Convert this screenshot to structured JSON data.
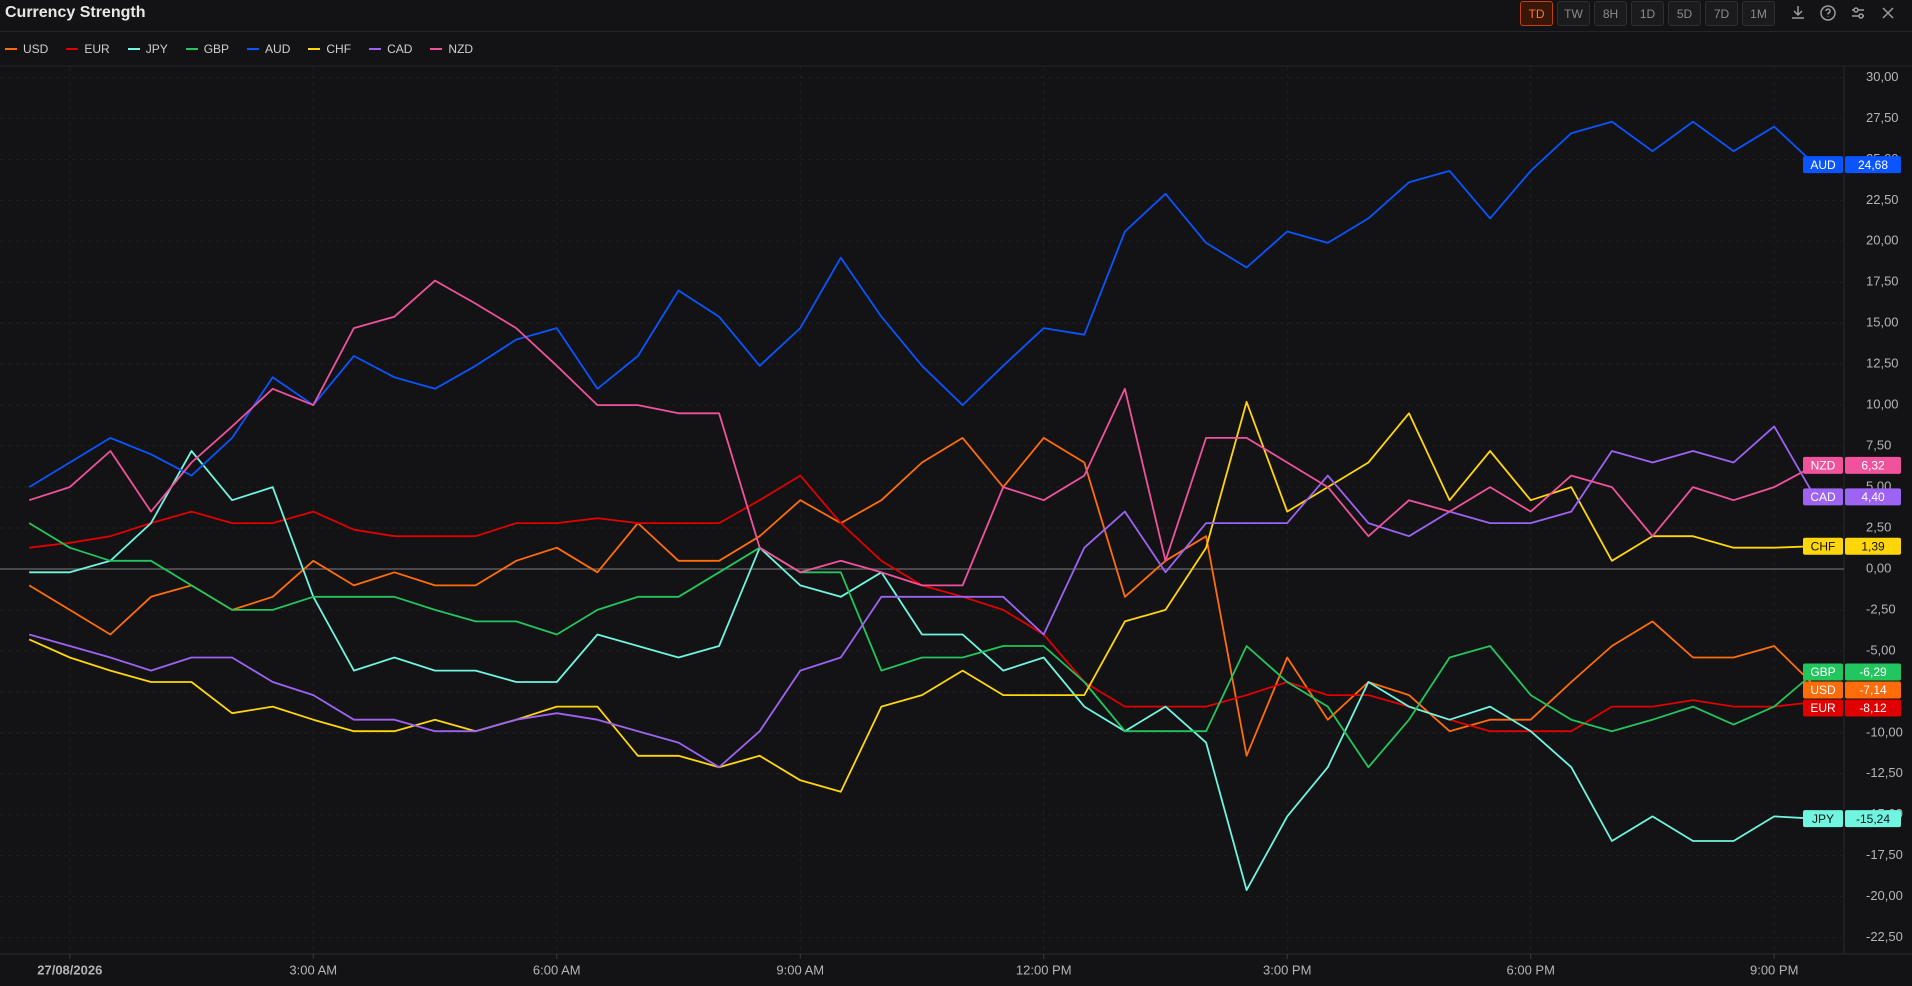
{
  "chart_data": {
    "type": "line",
    "title": "Currency Strength",
    "toolbar": {
      "ranges": [
        "TD",
        "TW",
        "8H",
        "1D",
        "5D",
        "7D",
        "1M"
      ],
      "active": "TD"
    },
    "x": [
      -0.5,
      0,
      0.5,
      1,
      1.5,
      2,
      2.5,
      3,
      3.5,
      4,
      4.5,
      5,
      5.5,
      6,
      6.5,
      7,
      7.5,
      8,
      8.5,
      9,
      9.5,
      10,
      10.5,
      11,
      11.5,
      12,
      12.5,
      13,
      13.5,
      14,
      14.5,
      15,
      15.5,
      16,
      16.5,
      17,
      17.5,
      18,
      18.5,
      19,
      19.5,
      20,
      20.5,
      21,
      21.5
    ],
    "xlim": [
      -0.86,
      21.86
    ],
    "xticks": [
      {
        "value": 0,
        "label": "27/08/2026"
      },
      {
        "value": 3,
        "label": "3:00 AM"
      },
      {
        "value": 6,
        "label": "6:00 AM"
      },
      {
        "value": 9,
        "label": "9:00 AM"
      },
      {
        "value": 12,
        "label": "12:00 PM"
      },
      {
        "value": 15,
        "label": "3:00 PM"
      },
      {
        "value": 18,
        "label": "6:00 PM"
      },
      {
        "value": 21,
        "label": "9:00 PM"
      }
    ],
    "ylim": [
      -23.5,
      30.7
    ],
    "yticks": [
      {
        "value": -22.5,
        "label": "-22,50"
      },
      {
        "value": -20,
        "label": "-20,00"
      },
      {
        "value": -17.5,
        "label": "-17,50"
      },
      {
        "value": -15,
        "label": "-15,00"
      },
      {
        "value": -12.5,
        "label": "-12,50"
      },
      {
        "value": -10,
        "label": "-10,00"
      },
      {
        "value": -7.5,
        "label": "-7,50"
      },
      {
        "value": -5,
        "label": "-5,00"
      },
      {
        "value": -2.5,
        "label": "-2,50"
      },
      {
        "value": 0,
        "label": "0,00"
      },
      {
        "value": 2.5,
        "label": "2,50"
      },
      {
        "value": 5,
        "label": "5,00"
      },
      {
        "value": 7.5,
        "label": "7,50"
      },
      {
        "value": 10,
        "label": "10,00"
      },
      {
        "value": 12.5,
        "label": "12,50"
      },
      {
        "value": 15,
        "label": "15,00"
      },
      {
        "value": 17.5,
        "label": "17,50"
      },
      {
        "value": 20,
        "label": "20,00"
      },
      {
        "value": 22.5,
        "label": "22,50"
      },
      {
        "value": 25,
        "label": "25,00"
      },
      {
        "value": 27.5,
        "label": "27,50"
      },
      {
        "value": 30,
        "label": "30,00"
      }
    ],
    "grid": true,
    "series": [
      {
        "name": "USD",
        "color": "#ff6d0a",
        "last_label": "-7,14",
        "values": [
          -1,
          -2.5,
          -4,
          -1.7,
          -1,
          -2.5,
          -1.7,
          0.5,
          -1,
          -0.2,
          -1,
          -1,
          0.5,
          1.3,
          -0.2,
          2.8,
          0.5,
          0.5,
          2,
          4.2,
          2.8,
          4.2,
          6.5,
          8,
          5,
          8,
          6.5,
          -1.7,
          0.5,
          2,
          -11.4,
          -5.4,
          -9.2,
          -6.9,
          -7.7,
          -9.9,
          -9.2,
          -9.2,
          -6.9,
          -4.7,
          -3.2,
          -5.4,
          -5.4,
          -4.7,
          -7.14
        ]
      },
      {
        "name": "EUR",
        "color": "#e00000",
        "last_label": "-8,12",
        "values": [
          1.3,
          1.6,
          2,
          2.8,
          3.5,
          2.8,
          2.8,
          3.5,
          2.4,
          2,
          2,
          2,
          2.8,
          2.8,
          3.1,
          2.8,
          2.8,
          2.8,
          4.2,
          5.7,
          2.8,
          0.5,
          -1,
          -1.7,
          -2.5,
          -4,
          -6.9,
          -8.4,
          -8.4,
          -8.4,
          -7.7,
          -6.9,
          -7.7,
          -7.7,
          -8.4,
          -9.2,
          -9.9,
          -9.9,
          -9.9,
          -8.4,
          -8.4,
          -8,
          -8.4,
          -8.4,
          -8.12
        ]
      },
      {
        "name": "JPY",
        "color": "#6ff5e0",
        "last_label": "-15,24",
        "values": [
          -0.2,
          -0.2,
          0.5,
          2.8,
          7.2,
          4.2,
          5,
          -1.7,
          -6.2,
          -5.4,
          -6.2,
          -6.2,
          -6.9,
          -6.9,
          -4,
          -4.7,
          -5.4,
          -4.7,
          1.3,
          -1,
          -1.7,
          -0.2,
          -4,
          -4,
          -6.2,
          -5.4,
          -8.4,
          -9.9,
          -8.4,
          -10.6,
          -19.6,
          -15.1,
          -12.1,
          -6.9,
          -8.4,
          -9.2,
          -8.4,
          -9.9,
          -12.1,
          -16.6,
          -15.1,
          -16.6,
          -16.6,
          -15.1,
          -15.24
        ]
      },
      {
        "name": "GBP",
        "color": "#22c55e",
        "last_label": "-6,29",
        "values": [
          2.8,
          1.3,
          0.5,
          0.5,
          -1,
          -2.5,
          -2.5,
          -1.7,
          -1.7,
          -1.7,
          -2.5,
          -3.2,
          -3.2,
          -4,
          -2.5,
          -1.7,
          -1.7,
          -0.2,
          1.3,
          -0.2,
          -0.2,
          -6.2,
          -5.4,
          -5.4,
          -4.7,
          -4.7,
          -6.9,
          -9.9,
          -9.9,
          -9.9,
          -4.7,
          -6.9,
          -8.4,
          -12.1,
          -9.2,
          -5.4,
          -4.7,
          -7.7,
          -9.2,
          -9.9,
          -9.2,
          -8.4,
          -9.5,
          -8.4,
          -6.29
        ]
      },
      {
        "name": "AUD",
        "color": "#0a55ff",
        "last_label": "24,68",
        "values": [
          5,
          6.5,
          8,
          7,
          5.7,
          8,
          11.7,
          10,
          13,
          11.7,
          11,
          12.4,
          14,
          14.7,
          11,
          13,
          17,
          15.4,
          12.4,
          14.7,
          19,
          15.4,
          12.4,
          10,
          12.4,
          14.7,
          14.3,
          20.6,
          22.9,
          19.9,
          18.4,
          20.6,
          19.9,
          21.4,
          23.6,
          24.3,
          21.4,
          24.3,
          26.6,
          27.3,
          25.5,
          27.3,
          25.5,
          27,
          24.68
        ]
      },
      {
        "name": "CHF",
        "color": "#ffd60a",
        "last_label": "1,39",
        "values": [
          -4.3,
          -5.4,
          -6.2,
          -6.9,
          -6.9,
          -8.8,
          -8.4,
          -9.2,
          -9.9,
          -9.9,
          -9.2,
          -9.9,
          -9.2,
          -8.4,
          -8.4,
          -11.4,
          -11.4,
          -12.1,
          -11.4,
          -12.9,
          -13.6,
          -8.4,
          -7.7,
          -6.2,
          -7.7,
          -7.7,
          -7.7,
          -3.2,
          -2.5,
          1.3,
          10.2,
          3.5,
          5,
          6.5,
          9.5,
          4.2,
          7.2,
          4.2,
          5,
          0.5,
          2,
          2,
          1.3,
          1.3,
          1.39
        ]
      },
      {
        "name": "CAD",
        "color": "#9d63f2",
        "last_label": "4,40",
        "values": [
          -4,
          -4.7,
          -5.4,
          -6.2,
          -5.4,
          -5.4,
          -6.9,
          -7.7,
          -9.2,
          -9.2,
          -9.9,
          -9.9,
          -9.2,
          -8.8,
          -9.2,
          -9.9,
          -10.6,
          -12.1,
          -9.9,
          -6.2,
          -5.4,
          -1.7,
          -1.7,
          -1.7,
          -1.7,
          -4,
          1.3,
          3.5,
          -0.2,
          2.8,
          2.8,
          2.8,
          5.7,
          2.8,
          2,
          3.5,
          2.8,
          2.8,
          3.5,
          7.2,
          6.5,
          7.2,
          6.5,
          8.7,
          4.4
        ]
      },
      {
        "name": "NZD",
        "color": "#f0529c",
        "last_label": "6,32",
        "values": [
          4.2,
          5,
          7.2,
          3.5,
          6.5,
          8.7,
          11,
          10,
          14.7,
          15.4,
          17.6,
          16.2,
          14.7,
          12.4,
          10,
          10,
          9.5,
          9.5,
          1.3,
          -0.2,
          0.5,
          -0.2,
          -1,
          -1,
          5,
          4.2,
          5.7,
          11,
          0.5,
          8,
          8,
          6.5,
          5,
          2,
          4.2,
          3.5,
          5,
          3.5,
          5.7,
          5,
          2,
          5,
          4.2,
          5,
          6.32
        ]
      }
    ]
  }
}
